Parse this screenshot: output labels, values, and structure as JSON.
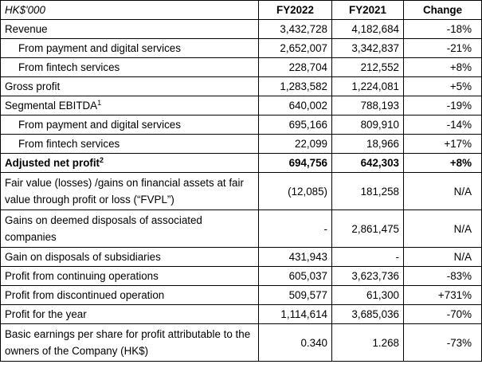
{
  "header": {
    "label": "HK$'000",
    "fy2022": "FY2022",
    "fy2021": "FY2021",
    "change": "Change"
  },
  "rows": [
    {
      "label": "Revenue",
      "fy2022": "3,432,728",
      "fy2021": "4,182,684",
      "change": "-18%"
    },
    {
      "label": "From payment and digital services",
      "fy2022": "2,652,007",
      "fy2021": "3,342,837",
      "change": "-21%"
    },
    {
      "label": "From fintech services",
      "fy2022": "228,704",
      "fy2021": "212,552",
      "change": "+8%"
    },
    {
      "label": "Gross profit",
      "fy2022": "1,283,582",
      "fy2021": "1,224,081",
      "change": "+5%"
    },
    {
      "label": "Segmental EBITDA",
      "sup": "1",
      "fy2022": "640,002",
      "fy2021": "788,193",
      "change": "-19%"
    },
    {
      "label": "From payment and digital services",
      "fy2022": "695,166",
      "fy2021": "809,910",
      "change": "-14%"
    },
    {
      "label": "From fintech services",
      "fy2022": "22,099",
      "fy2021": "18,966",
      "change": "+17%"
    },
    {
      "label": "Adjusted net profit",
      "sup": "2",
      "fy2022": "694,756",
      "fy2021": "642,303",
      "change": "+8%"
    },
    {
      "label": "Fair value (losses) /gains on financial assets at fair value through profit or loss (“FVPL”)",
      "fy2022": "(12,085)",
      "fy2021": "181,258",
      "change": "N/A"
    },
    {
      "label": "Gains on deemed disposals of associated companies",
      "fy2022": "-",
      "fy2021": "2,861,475",
      "change": "N/A"
    },
    {
      "label": "Gain on disposals of subsidiaries",
      "fy2022": "431,943",
      "fy2021": "-",
      "change": "N/A"
    },
    {
      "label": "Profit from continuing operations",
      "fy2022": "605,037",
      "fy2021": "3,623,736",
      "change": "-83%"
    },
    {
      "label": "Profit from discontinued operation",
      "fy2022": "509,577",
      "fy2021": "61,300",
      "change": "+731%"
    },
    {
      "label": "Profit for the year",
      "fy2022": "1,114,614",
      "fy2021": "3,685,036",
      "change": "-70%"
    },
    {
      "label": "Basic earnings per share for profit attributable to the owners of the Company (HK$)",
      "fy2022": "0.340",
      "fy2021": "1.268",
      "change": "-73%"
    }
  ]
}
